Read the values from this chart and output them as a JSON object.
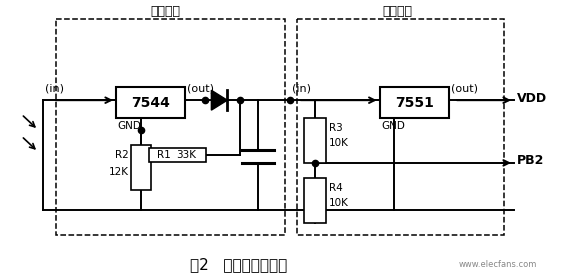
{
  "title": "图2   定压、稳压电路",
  "box1_label": "7544",
  "box2_label": "7551",
  "label_dingya": "定压电路",
  "label_wendingya": "稳压电路",
  "bg_color": "#ffffff",
  "line_color": "#000000",
  "watermark": "www.elecfans.com",
  "lw": 1.4,
  "fig_w": 5.67,
  "fig_h": 2.8,
  "dpi": 100
}
